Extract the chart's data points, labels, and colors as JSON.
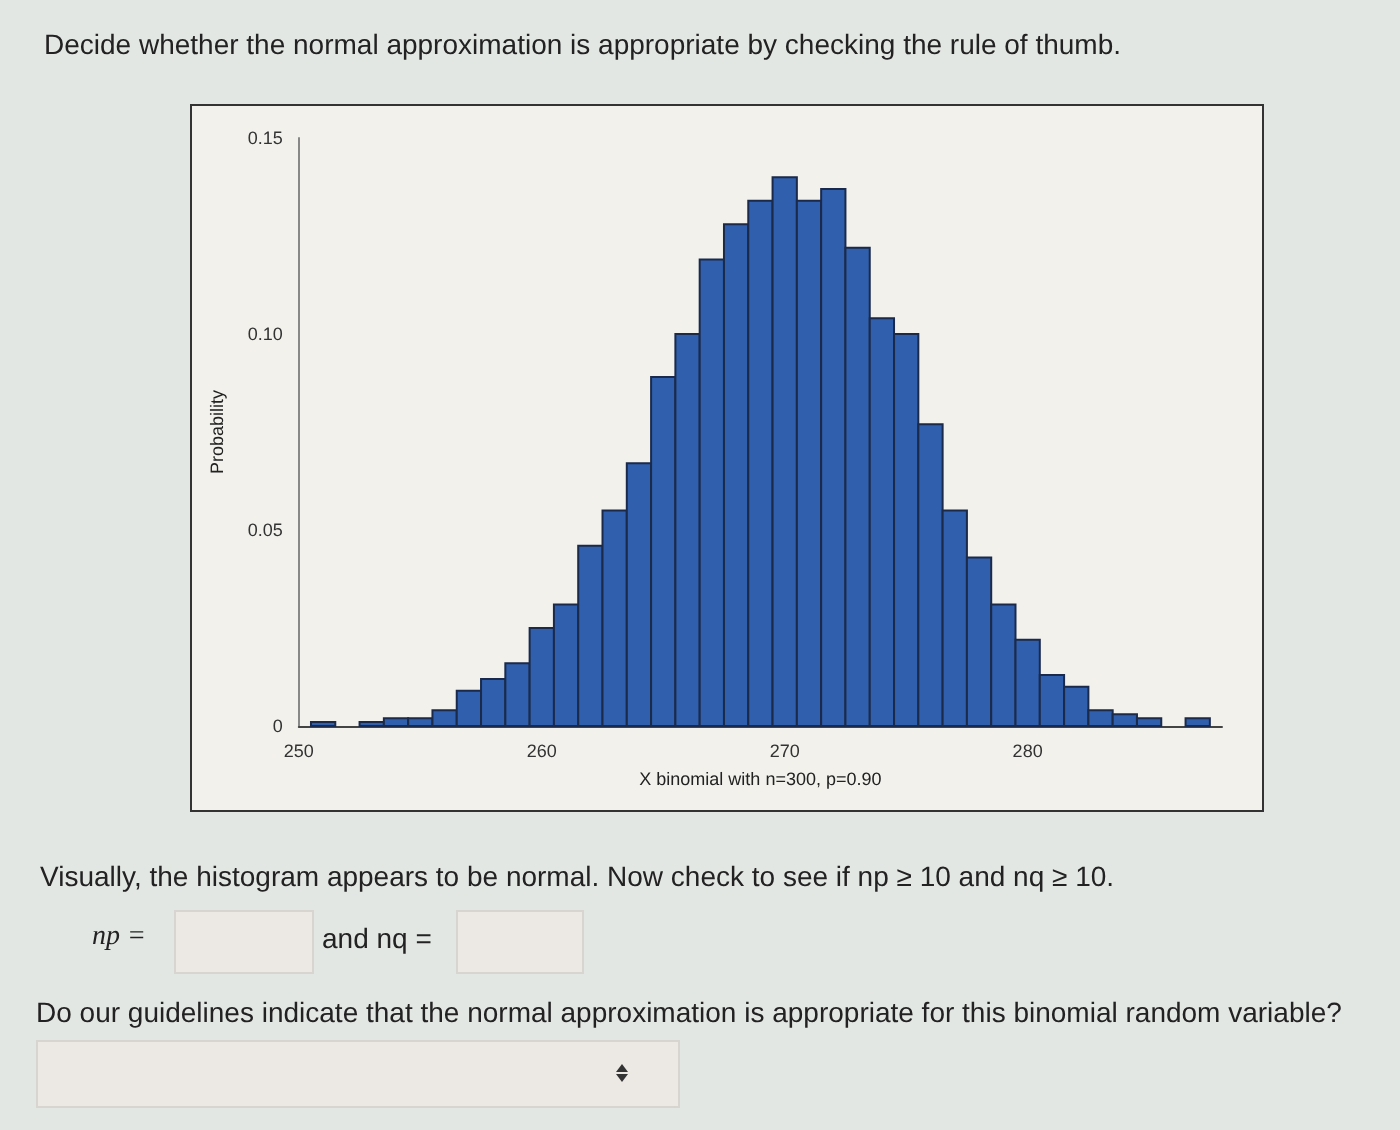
{
  "chart_data": {
    "type": "histogram",
    "title": "Decide whether the normal approximation is appropriate by checking the rule of thumb.",
    "xlabel": "X binomial with n=300, p=0.90",
    "ylabel": "Probability",
    "bins": [
      250.5,
      251.5,
      252.5,
      253.5,
      254.5,
      255.5,
      256.5,
      257.5,
      258.5,
      259.5,
      260.5,
      261.5,
      262.5,
      263.5,
      264.5,
      265.5,
      266.5,
      267.5,
      268.5,
      269.5,
      270.5,
      271.5,
      272.5,
      273.5,
      274.5,
      275.5,
      276.5,
      277.5,
      278.5,
      279.5,
      280.5,
      281.5,
      282.5,
      283.5,
      284.5,
      285.5,
      286.5,
      287.5
    ],
    "values": [
      0.001,
      0,
      0.001,
      0.002,
      0.002,
      0.004,
      0.009,
      0.012,
      0.016,
      0.025,
      0.031,
      0.046,
      0.055,
      0.067,
      0.089,
      0.1,
      0.119,
      0.128,
      0.134,
      0.14,
      0.134,
      0.137,
      0.122,
      0.104,
      0.1,
      0.077,
      0.055,
      0.043,
      0.031,
      0.022,
      0.013,
      0.01,
      0.004,
      0.003,
      0.002,
      0,
      0.002
    ],
    "color": "#2f5fad",
    "xlim": [
      250,
      288
    ],
    "xticks": [
      250,
      260,
      270,
      280
    ],
    "ylim": [
      0,
      0.15
    ],
    "yticks": [
      0,
      0.05,
      {
        "value": 0.1,
        "label": "0.10"
      },
      0.15
    ],
    "grid": false,
    "annotations": [
      "Visually, the histogram appears to be normal. Now check to see if np ≥ 10 and nq ≥ 10.",
      "np =",
      "and nq =",
      "Do our guidelines indicate that the normal approximation is appropriate for this binomial random variable?"
    ]
  }
}
